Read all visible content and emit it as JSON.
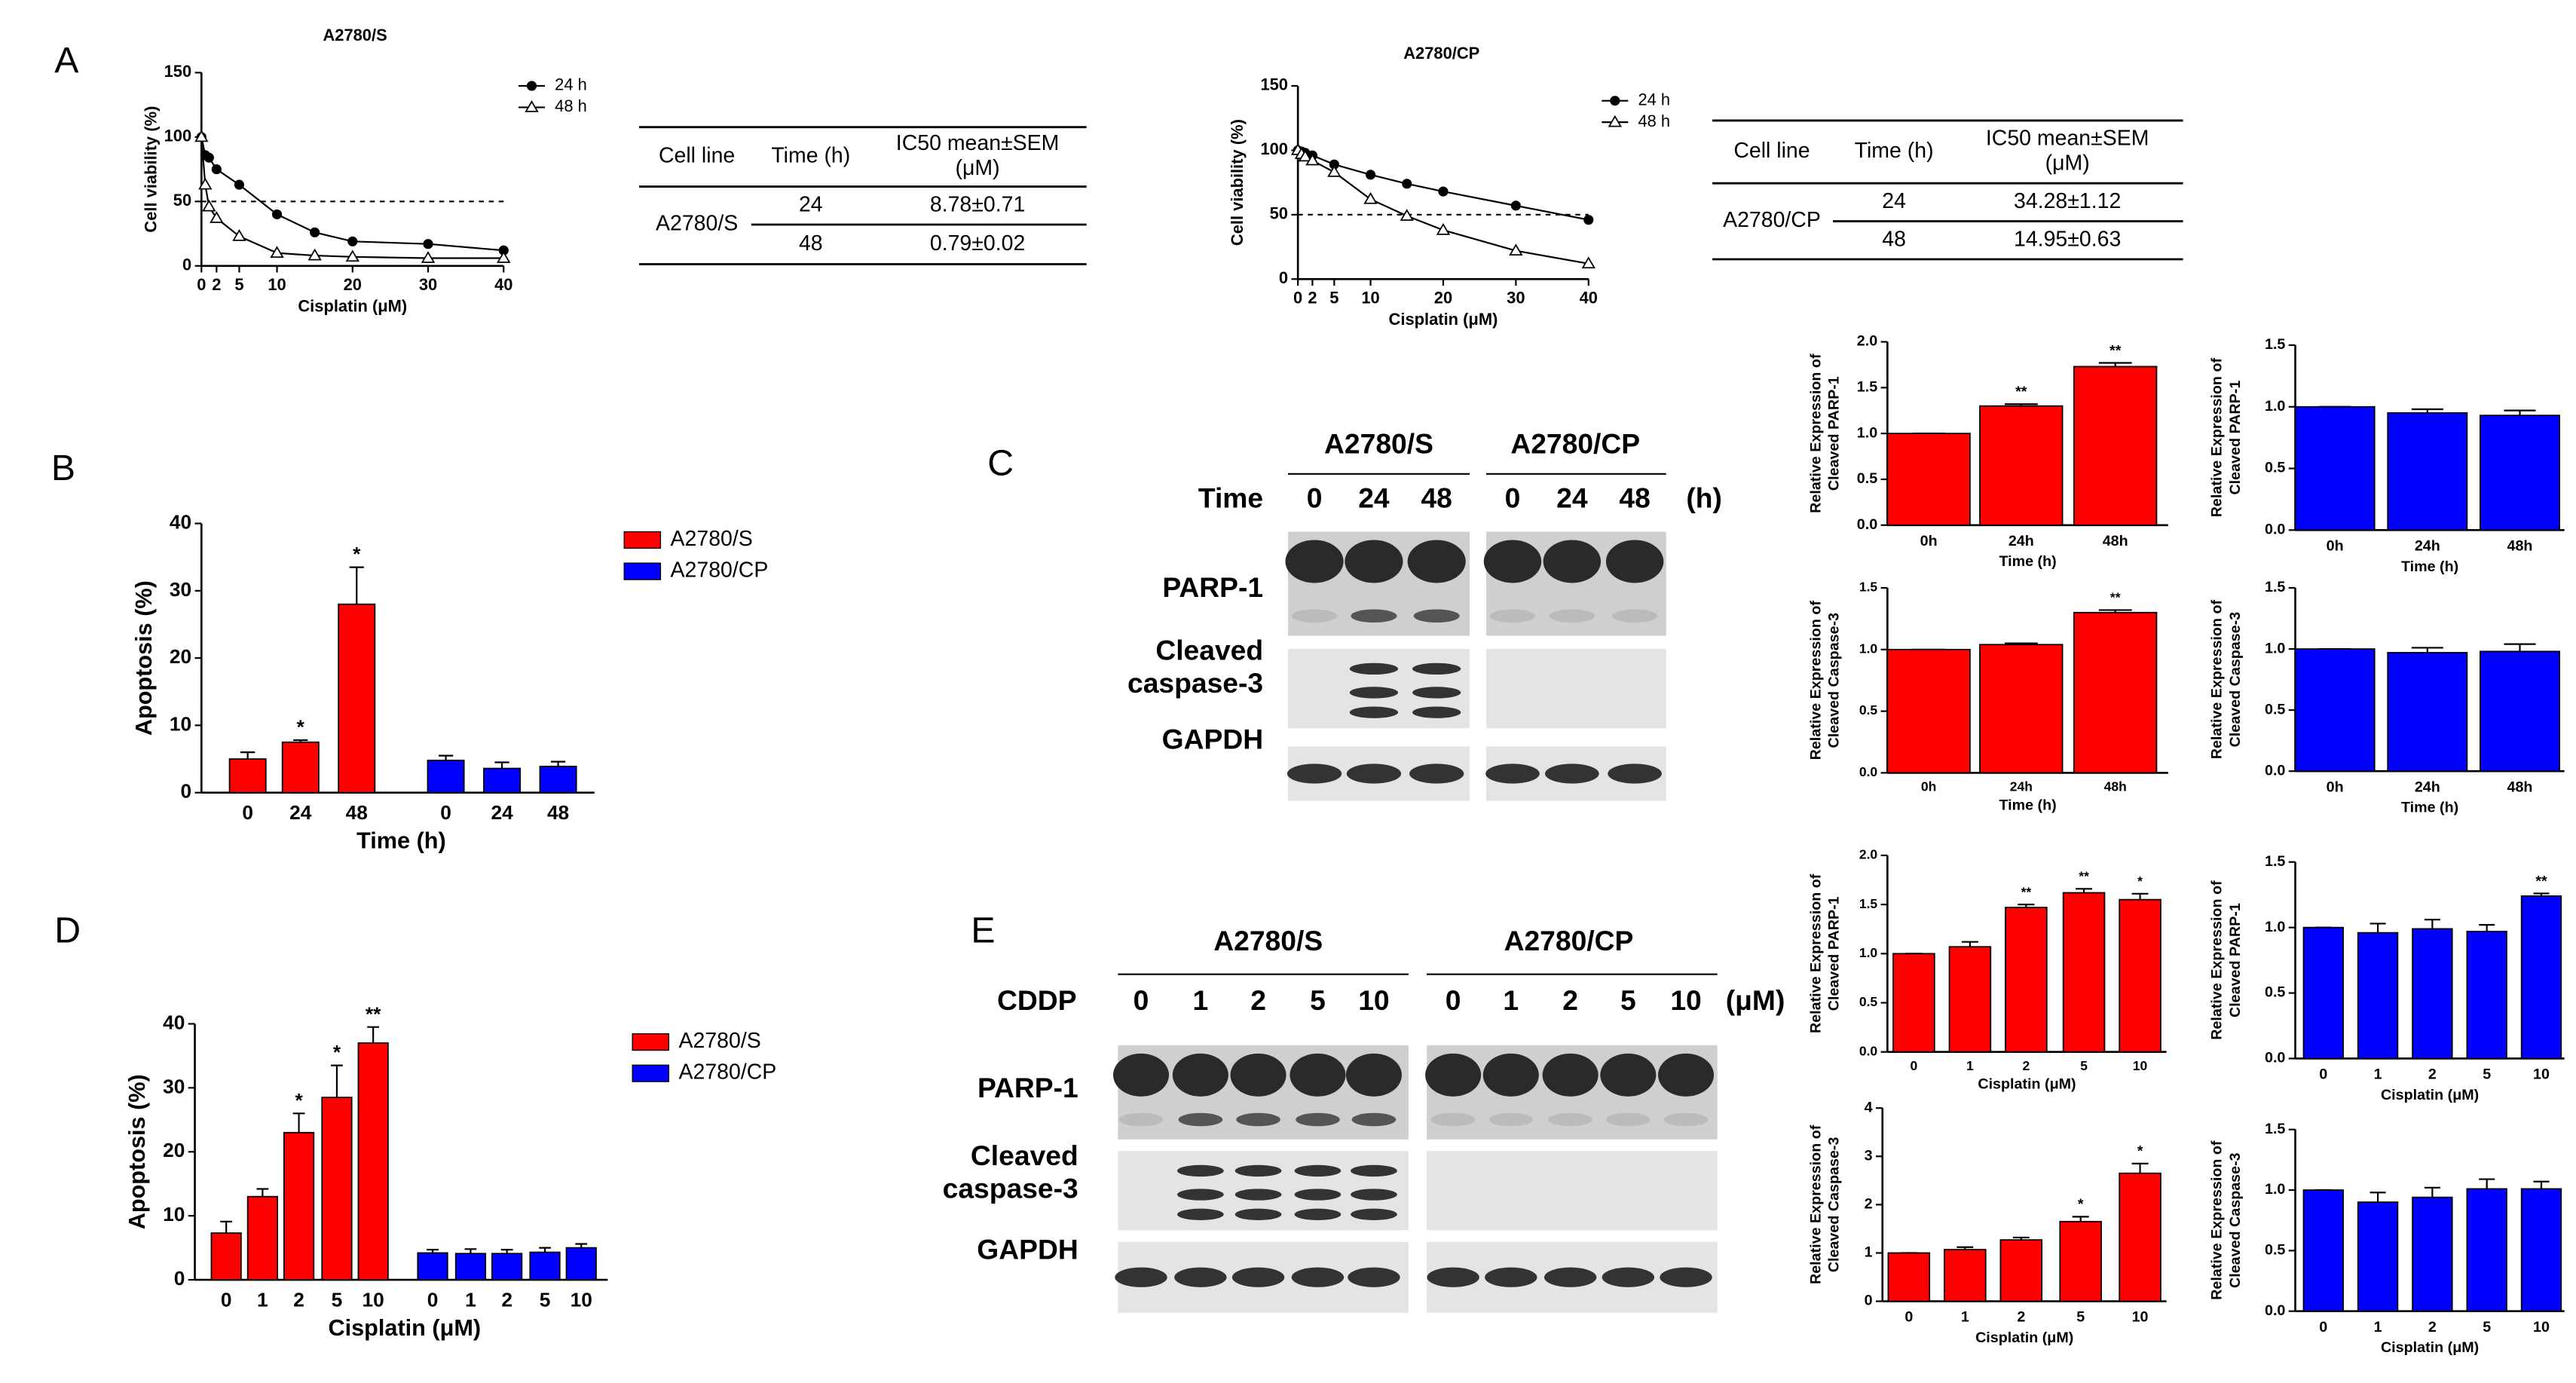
{
  "panel_labels": [
    "A",
    "B",
    "C",
    "D",
    "E"
  ],
  "chart_data": [
    {
      "type": "line",
      "title": "A2780/S",
      "xlabel": "Cisplatin (μM)",
      "ylabel": [
        "Cell viability (%)"
      ],
      "x": [
        0,
        0.5,
        1,
        2,
        5,
        10,
        15,
        20,
        30,
        40
      ],
      "xlim": [
        0,
        40
      ],
      "xticks": [
        0,
        2,
        5,
        10,
        20,
        30,
        40
      ],
      "ylim": [
        0,
        150
      ],
      "yticks": [
        0,
        50,
        100,
        150
      ],
      "reference_line": 50,
      "series": [
        {
          "name": "24 h",
          "color": "#000000",
          "marker": "circle",
          "values": [
            100,
            86,
            84,
            75,
            63,
            40,
            26,
            19,
            17,
            12
          ]
        },
        {
          "name": "48 h",
          "color": "#000000",
          "marker": "triangle",
          "values": [
            100,
            63,
            46,
            37,
            23,
            10,
            8,
            7,
            6,
            6
          ]
        }
      ]
    },
    {
      "type": "line",
      "title": "A2780/CP",
      "xlabel": "Cisplatin (μM)",
      "ylabel": [
        "Cell viability (%)"
      ],
      "x": [
        0,
        0.5,
        1,
        2,
        5,
        10,
        15,
        20,
        30,
        40
      ],
      "xlim": [
        0,
        40
      ],
      "xticks": [
        0,
        2,
        5,
        10,
        20,
        30,
        40
      ],
      "ylim": [
        0,
        150
      ],
      "yticks": [
        0,
        50,
        100,
        150
      ],
      "reference_line": 50,
      "series": [
        {
          "name": "24 h",
          "color": "#000000",
          "marker": "circle",
          "values": [
            100,
            99,
            98,
            96,
            89,
            81,
            74,
            68,
            57,
            46
          ]
        },
        {
          "name": "48 h",
          "color": "#000000",
          "marker": "triangle",
          "values": [
            100,
            97,
            95,
            92,
            83,
            62,
            49,
            38,
            22,
            12
          ]
        }
      ]
    },
    {
      "type": "bar",
      "xlabel": "Time (h)",
      "ylabel": [
        "Apoptosis (%)"
      ],
      "categories": [
        "0",
        "24",
        "48",
        "0",
        "24",
        "48"
      ],
      "ylim": [
        0,
        40
      ],
      "yticks": [
        0,
        10,
        20,
        30,
        40
      ],
      "series": [
        {
          "name": "A2780/S",
          "color": "#ff0000",
          "values": [
            5,
            7.5,
            28,
            null,
            null,
            null
          ],
          "errors": [
            1,
            0.3,
            5.5,
            null,
            null,
            null
          ],
          "labels": [
            null,
            "*",
            "*",
            null,
            null,
            null
          ]
        },
        {
          "name": "A2780/CP",
          "color": "#0000ff",
          "values": [
            null,
            null,
            null,
            4.8,
            3.6,
            3.9
          ],
          "errors": [
            null,
            null,
            null,
            0.7,
            0.9,
            0.7
          ],
          "labels": [
            null,
            null,
            null,
            null,
            null,
            null
          ]
        }
      ]
    },
    {
      "type": "bar",
      "xlabel": "Cisplatin (μM)",
      "ylabel": [
        "Apoptosis (%)"
      ],
      "categories": [
        "0",
        "1",
        "2",
        "5",
        "10",
        "0",
        "1",
        "2",
        "5",
        "10"
      ],
      "ylim": [
        0,
        40
      ],
      "yticks": [
        0,
        10,
        20,
        30,
        40
      ],
      "series": [
        {
          "name": "A2780/S",
          "color": "#ff0000",
          "values": [
            7.3,
            13,
            23,
            28.5,
            37,
            null,
            null,
            null,
            null,
            null
          ],
          "errors": [
            1.8,
            1.2,
            3,
            5,
            2.5,
            null,
            null,
            null,
            null,
            null
          ],
          "labels": [
            null,
            null,
            "*",
            "*",
            "**",
            null,
            null,
            null,
            null,
            null
          ]
        },
        {
          "name": "A2780/CP",
          "color": "#0000ff",
          "values": [
            null,
            null,
            null,
            null,
            null,
            4.2,
            4.1,
            4.1,
            4.3,
            5
          ],
          "errors": [
            null,
            null,
            null,
            null,
            null,
            0.5,
            0.7,
            0.6,
            0.7,
            0.6
          ],
          "labels": [
            null,
            null,
            null,
            null,
            null,
            null,
            null,
            null,
            null,
            null
          ]
        }
      ]
    },
    {
      "type": "bar",
      "xlabel": "Time (h)",
      "ylabel": [
        "Relative Expression of",
        "Cleaved PARP-1"
      ],
      "categories": [
        "0h",
        "24h",
        "48h"
      ],
      "ylim": [
        0,
        2
      ],
      "yticks": [
        {
          "value": 0,
          "label": "0.0"
        },
        {
          "value": 0.5,
          "label": "0.5"
        },
        {
          "value": 1,
          "label": "1.0"
        },
        {
          "value": 1.5,
          "label": "1.5"
        },
        {
          "value": 2,
          "label": "2.0"
        }
      ],
      "series": [
        {
          "color": "#ff0000",
          "values": [
            1,
            1.3,
            1.73
          ],
          "errors": [
            0,
            0.02,
            0.04
          ],
          "labels": [
            null,
            "**",
            "**"
          ]
        }
      ]
    },
    {
      "type": "bar",
      "xlabel": "Time (h)",
      "ylabel": [
        "Relative Expression of",
        "Cleaved PARP-1"
      ],
      "categories": [
        "0h",
        "24h",
        "48h"
      ],
      "ylim": [
        0,
        1.5
      ],
      "yticks": [
        {
          "value": 0,
          "label": "0.0"
        },
        {
          "value": 0.5,
          "label": "0.5"
        },
        {
          "value": 1,
          "label": "1.0"
        },
        {
          "value": 1.5,
          "label": "1.5"
        }
      ],
      "series": [
        {
          "color": "#0000ff",
          "values": [
            1,
            0.95,
            0.93
          ],
          "errors": [
            0,
            0.03,
            0.04
          ],
          "labels": [
            null,
            null,
            null
          ]
        }
      ]
    },
    {
      "type": "bar",
      "xlabel": "Time (h)",
      "ylabel": [
        "Relative Expression of",
        "Cleaved Caspase-3"
      ],
      "categories": [
        "0h",
        "24h",
        "48h"
      ],
      "ylim": [
        0,
        1.5
      ],
      "yticks": [
        {
          "value": 0,
          "label": "0.0"
        },
        {
          "value": 0.5,
          "label": "0.5"
        },
        {
          "value": 1,
          "label": "1.0"
        },
        {
          "value": 1.5,
          "label": "1.5"
        }
      ],
      "series": [
        {
          "color": "#ff0000",
          "values": [
            1,
            1.04,
            1.3
          ],
          "errors": [
            0,
            0.01,
            0.02
          ],
          "labels": [
            null,
            null,
            "**"
          ]
        }
      ]
    },
    {
      "type": "bar",
      "xlabel": "Time (h)",
      "ylabel": [
        "Relative Expression of",
        "Cleaved Caspase-3"
      ],
      "categories": [
        "0h",
        "24h",
        "48h"
      ],
      "ylim": [
        0,
        1.5
      ],
      "yticks": [
        {
          "value": 0,
          "label": "0.0"
        },
        {
          "value": 0.5,
          "label": "0.5"
        },
        {
          "value": 1,
          "label": "1.0"
        },
        {
          "value": 1.5,
          "label": "1.5"
        }
      ],
      "series": [
        {
          "color": "#0000ff",
          "values": [
            1,
            0.97,
            0.98
          ],
          "errors": [
            0,
            0.04,
            0.06
          ],
          "labels": [
            null,
            null,
            null
          ]
        }
      ]
    },
    {
      "type": "bar",
      "xlabel": "Cisplatin (μM)",
      "ylabel": [
        "Relative Expression of",
        "Cleaved PARP-1"
      ],
      "categories": [
        "0",
        "1",
        "2",
        "5",
        "10"
      ],
      "ylim": [
        0,
        2
      ],
      "yticks": [
        {
          "value": 0,
          "label": "0.0"
        },
        {
          "value": 0.5,
          "label": "0.5"
        },
        {
          "value": 1,
          "label": "1.0"
        },
        {
          "value": 1.5,
          "label": "1.5"
        },
        {
          "value": 2,
          "label": "2.0"
        }
      ],
      "series": [
        {
          "color": "#ff0000",
          "values": [
            1,
            1.07,
            1.47,
            1.62,
            1.55
          ],
          "errors": [
            0,
            0.05,
            0.03,
            0.04,
            0.06
          ],
          "labels": [
            null,
            null,
            "**",
            "**",
            "*"
          ]
        }
      ]
    },
    {
      "type": "bar",
      "xlabel": "Cisplatin (μM)",
      "ylabel": [
        "Relative Expression of",
        "Cleaved PARP-1"
      ],
      "categories": [
        "0",
        "1",
        "2",
        "5",
        "10"
      ],
      "ylim": [
        0,
        1.5
      ],
      "yticks": [
        {
          "value": 0,
          "label": "0.0"
        },
        {
          "value": 0.5,
          "label": "0.5"
        },
        {
          "value": 1,
          "label": "1.0"
        },
        {
          "value": 1.5,
          "label": "1.5"
        }
      ],
      "series": [
        {
          "color": "#0000ff",
          "values": [
            1,
            0.96,
            0.99,
            0.97,
            1.24
          ],
          "errors": [
            0,
            0.07,
            0.07,
            0.05,
            0.02
          ],
          "labels": [
            null,
            null,
            null,
            null,
            "**"
          ]
        }
      ]
    },
    {
      "type": "bar",
      "xlabel": "Cisplatin (μM)",
      "ylabel": [
        "Relative Expression of",
        "Cleaved Caspase-3"
      ],
      "categories": [
        "0",
        "1",
        "2",
        "5",
        "10"
      ],
      "ylim": [
        0,
        4
      ],
      "yticks": [
        0,
        1,
        2,
        3,
        4
      ],
      "series": [
        {
          "color": "#ff0000",
          "values": [
            1,
            1.07,
            1.27,
            1.65,
            2.65
          ],
          "errors": [
            0,
            0.05,
            0.05,
            0.1,
            0.2
          ],
          "labels": [
            null,
            null,
            null,
            "*",
            "*"
          ]
        }
      ]
    },
    {
      "type": "bar",
      "xlabel": "Cisplatin (μM)",
      "ylabel": [
        "Relative Expression of",
        "Cleaved Caspase-3"
      ],
      "categories": [
        "0",
        "1",
        "2",
        "5",
        "10"
      ],
      "ylim": [
        0,
        1.5
      ],
      "yticks": [
        {
          "value": 0,
          "label": "0.0"
        },
        {
          "value": 0.5,
          "label": "0.5"
        },
        {
          "value": 1,
          "label": "1.0"
        },
        {
          "value": 1.5,
          "label": "1.5"
        }
      ],
      "series": [
        {
          "color": "#0000ff",
          "values": [
            1,
            0.9,
            0.94,
            1.01,
            1.01
          ],
          "errors": [
            0,
            0.08,
            0.08,
            0.08,
            0.06
          ],
          "labels": [
            null,
            null,
            null,
            null,
            null
          ]
        }
      ]
    }
  ],
  "tables": [
    {
      "header": [
        [
          "Cell line"
        ],
        [
          "Time (h)"
        ],
        [
          "IC50 mean±SEM",
          "(μM)"
        ]
      ],
      "cell_line": "A2780/S",
      "rows": [
        [
          "24",
          "8.78±0.71"
        ],
        [
          "48",
          "0.79±0.02"
        ]
      ]
    },
    {
      "header": [
        [
          "Cell line"
        ],
        [
          "Time (h)"
        ],
        [
          "IC50 mean±SEM",
          "(μM)"
        ]
      ],
      "cell_line": "A2780/CP",
      "rows": [
        [
          "24",
          "34.28±1.12"
        ],
        [
          "48",
          "14.95±0.63"
        ]
      ]
    }
  ],
  "blots": [
    {
      "groups": [
        "A2780/S",
        "A2780/CP"
      ],
      "row_title": "Time",
      "lanes": [
        "0",
        "24",
        "48"
      ],
      "unit": "(h)",
      "rows": [
        [
          "PARP-1"
        ],
        [
          "Cleaved",
          "caspase-3"
        ],
        [
          "GAPDH"
        ]
      ]
    },
    {
      "groups": [
        "A2780/S",
        "A2780/CP"
      ],
      "row_title": "CDDP",
      "lanes": [
        "0",
        "1",
        "2",
        "5",
        "10"
      ],
      "unit": "(μM)",
      "rows": [
        [
          "PARP-1"
        ],
        [
          "Cleaved",
          "caspase-3"
        ],
        [
          "GAPDH"
        ]
      ]
    }
  ]
}
